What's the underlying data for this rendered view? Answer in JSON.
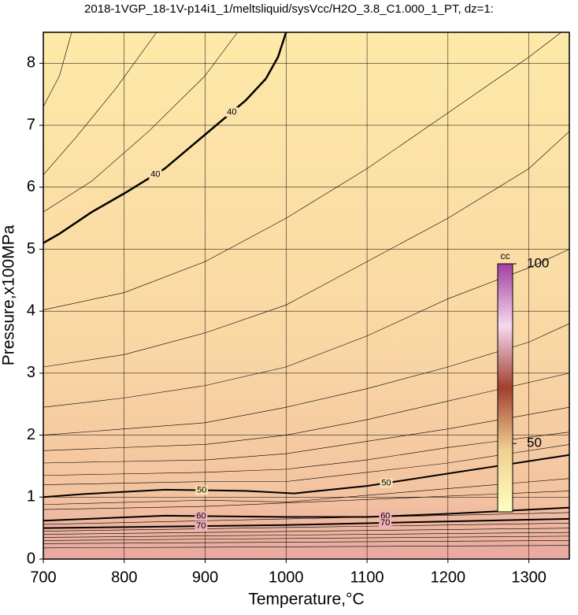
{
  "chart_data": {
    "type": "contour",
    "title": "2018-1VGP_18-1V-p14i1_1/meltsliquid/sysVcc/H2O_3.8_C1.000_1_PT, dz=1:",
    "xlabel": "Temperature,°C",
    "ylabel": "Pressure,x100MPa",
    "xlim": [
      700,
      1350
    ],
    "ylim": [
      0,
      8.5
    ],
    "xticks": [
      700,
      800,
      900,
      1000,
      1100,
      1200,
      1300
    ],
    "yticks": [
      0,
      1,
      2,
      3,
      4,
      5,
      6,
      7,
      8
    ],
    "grid": true,
    "contours": [
      {
        "level": 40,
        "x": [
          700,
          720,
          760,
          800,
          850,
          900,
          950,
          975,
          990,
          1000
        ],
        "y": [
          5.1,
          5.25,
          5.6,
          5.9,
          6.3,
          6.85,
          7.4,
          7.75,
          8.1,
          8.5
        ]
      },
      {
        "level": 50,
        "x": [
          700,
          750,
          850,
          950,
          1010,
          1100,
          1200,
          1300,
          1350
        ],
        "y": [
          1.0,
          1.05,
          1.12,
          1.1,
          1.06,
          1.18,
          1.38,
          1.58,
          1.68
        ]
      },
      {
        "level": 60,
        "x": [
          700,
          850,
          1000,
          1100,
          1200,
          1350
        ],
        "y": [
          0.62,
          0.7,
          0.68,
          0.68,
          0.73,
          0.83
        ]
      },
      {
        "level": 70,
        "x": [
          700,
          1000,
          1350
        ],
        "y": [
          0.5,
          0.55,
          0.65
        ]
      }
    ],
    "lines": [
      {
        "x": [
          700,
          720,
          735
        ],
        "y": [
          7.3,
          7.8,
          8.5
        ]
      },
      {
        "x": [
          700,
          740,
          790,
          840
        ],
        "y": [
          6.2,
          6.8,
          7.6,
          8.5
        ]
      },
      {
        "x": [
          700,
          760,
          830,
          900,
          940
        ],
        "y": [
          5.6,
          6.1,
          6.9,
          7.8,
          8.5
        ]
      },
      {
        "x": [
          700,
          800,
          900,
          1000,
          1100,
          1200,
          1300,
          1340
        ],
        "y": [
          4.02,
          4.3,
          4.8,
          5.5,
          6.3,
          7.2,
          8.1,
          8.5
        ]
      },
      {
        "x": [
          700,
          800,
          900,
          1000,
          1100,
          1200,
          1300,
          1350
        ],
        "y": [
          3.1,
          3.3,
          3.65,
          4.1,
          4.8,
          5.5,
          6.3,
          6.9
        ]
      },
      {
        "x": [
          700,
          800,
          900,
          1000,
          1100,
          1200,
          1300,
          1350
        ],
        "y": [
          2.45,
          2.6,
          2.8,
          3.1,
          3.6,
          4.2,
          4.7,
          5.0
        ]
      },
      {
        "x": [
          700,
          800,
          900,
          1000,
          1100,
          1200,
          1300,
          1350
        ],
        "y": [
          2.0,
          2.1,
          2.2,
          2.45,
          2.75,
          3.1,
          3.5,
          3.8
        ]
      },
      {
        "x": [
          700,
          900,
          1000,
          1100,
          1200,
          1350
        ],
        "y": [
          1.75,
          1.85,
          2.0,
          2.25,
          2.55,
          3.0
        ]
      },
      {
        "x": [
          700,
          900,
          1000,
          1100,
          1200,
          1350
        ],
        "y": [
          1.55,
          1.6,
          1.7,
          1.9,
          2.1,
          2.45
        ]
      },
      {
        "x": [
          700,
          900,
          1000,
          1100,
          1200,
          1350
        ],
        "y": [
          1.35,
          1.4,
          1.45,
          1.6,
          1.8,
          2.05
        ]
      },
      {
        "x": [
          700,
          900,
          1000,
          1100,
          1200,
          1350
        ],
        "y": [
          1.2,
          1.25,
          1.25,
          1.4,
          1.55,
          1.85
        ]
      },
      {
        "x": [
          700,
          900,
          1000,
          1350
        ],
        "y": [
          0.88,
          0.95,
          0.92,
          1.3
        ]
      },
      {
        "x": [
          700,
          900,
          1350
        ],
        "y": [
          0.8,
          0.85,
          1.1
        ]
      },
      {
        "x": [
          700,
          1350
        ],
        "y": [
          0.56,
          0.75
        ]
      },
      {
        "x": [
          700,
          1350
        ],
        "y": [
          0.45,
          0.58
        ]
      },
      {
        "x": [
          700,
          1350
        ],
        "y": [
          0.4,
          0.5
        ]
      },
      {
        "x": [
          700,
          1350
        ],
        "y": [
          0.35,
          0.43
        ]
      },
      {
        "x": [
          700,
          1350
        ],
        "y": [
          0.3,
          0.37
        ]
      },
      {
        "x": [
          700,
          1350
        ],
        "y": [
          0.25,
          0.3
        ]
      },
      {
        "x": [
          700,
          1350
        ],
        "y": [
          0.18,
          0.22
        ]
      }
    ],
    "colorbar": {
      "label": "cc",
      "lim": [
        31,
        100
      ],
      "ticks": [
        50,
        100
      ]
    }
  }
}
